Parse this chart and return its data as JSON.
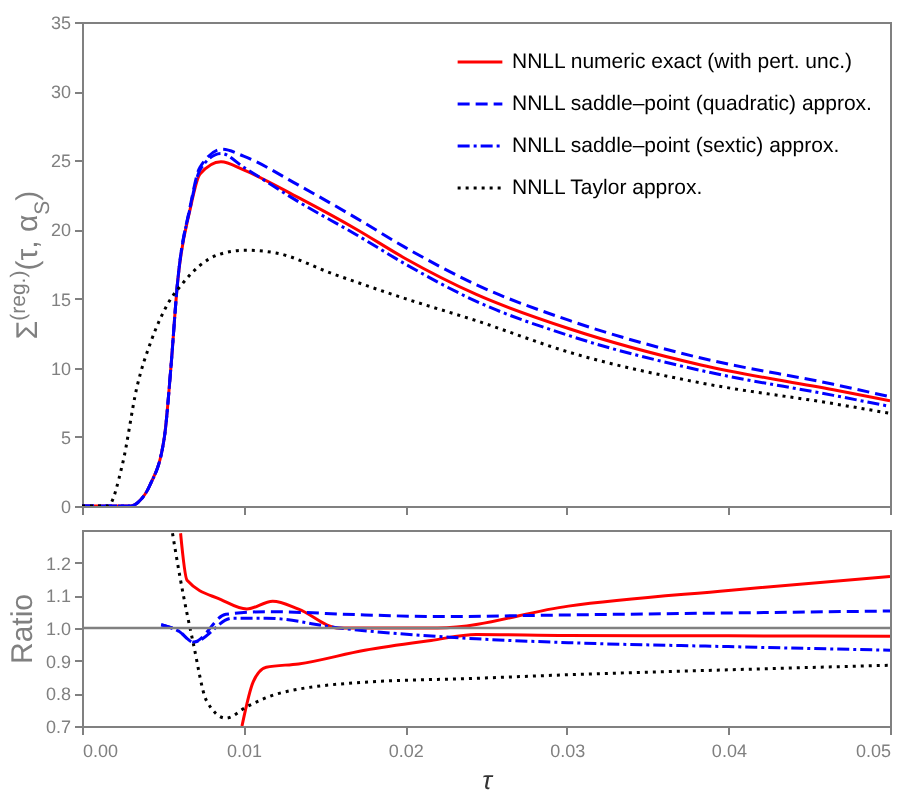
{
  "chart_data": [
    {
      "type": "line",
      "ylabel": "Σ$^{(reg.)}$(τ, α$_{S}$)",
      "xlim": [
        0,
        0.05
      ],
      "xticks": [
        0,
        0.01,
        0.02,
        0.03,
        0.04,
        0.05
      ],
      "ylim": [
        0,
        35
      ],
      "yticks": [
        0,
        5,
        10,
        15,
        20,
        25,
        30,
        35
      ],
      "tick_labels": "y",
      "legend": "top right",
      "grid": false,
      "series": [
        {
          "name": "NNLL numeric exact (with pert. unc.)",
          "color": "#ff0000",
          "line_style": "solid",
          "x": [
            0,
            0.003,
            0.0035,
            0.0042,
            0.0051,
            0.0055,
            0.0059,
            0.0067,
            0.0073,
            0.0086,
            0.01,
            0.0134,
            0.017,
            0.02,
            0.0244,
            0.0302,
            0.0383,
            0.0465,
            0.05
          ],
          "values": [
            0,
            0,
            0.3,
            1.5,
            5,
            10,
            16,
            21.5,
            24,
            24.9,
            24.3,
            22.3,
            20.0,
            17.9,
            15.3,
            12.8,
            10.2,
            8.4,
            7.6
          ]
        },
        {
          "name": "NNLL saddle–point (quadratic) approx.",
          "color": "#0000ff",
          "line_style": "dashed",
          "x": [
            0,
            0.003,
            0.0035,
            0.0042,
            0.0051,
            0.0055,
            0.0059,
            0.0067,
            0.0073,
            0.0087,
            0.01,
            0.0134,
            0.017,
            0.02,
            0.0244,
            0.0302,
            0.0383,
            0.0465,
            0.05
          ],
          "values": [
            0,
            0,
            0.3,
            1.5,
            5,
            10,
            16,
            21.7,
            24.5,
            25.8,
            25.3,
            23.2,
            20.8,
            18.7,
            16.0,
            13.4,
            10.7,
            8.8,
            7.9
          ]
        },
        {
          "name": "NNLL saddle–point (sextic) approx.",
          "color": "#0000ff",
          "line_style": "dashdot",
          "x": [
            0,
            0.003,
            0.0035,
            0.0042,
            0.0051,
            0.0055,
            0.0059,
            0.0067,
            0.0073,
            0.0086,
            0.01,
            0.0134,
            0.017,
            0.02,
            0.0244,
            0.0302,
            0.0383,
            0.0465,
            0.05
          ],
          "values": [
            0,
            0,
            0.3,
            1.5,
            5,
            10,
            16,
            21.6,
            24.3,
            25.5,
            24.5,
            22.0,
            19.6,
            17.5,
            14.8,
            12.3,
            9.8,
            8.0,
            7.2
          ]
        },
        {
          "name": "NNLL Taylor approx.",
          "color": "#000000",
          "line_style": "dotted",
          "x": [
            0,
            0.0016,
            0.0025,
            0.0034,
            0.0043,
            0.0053,
            0.0063,
            0.0073,
            0.0085,
            0.0101,
            0.012,
            0.0155,
            0.02,
            0.0244,
            0.0302,
            0.0383,
            0.0465,
            0.05
          ],
          "values": [
            0,
            0,
            3,
            8.6,
            12,
            14.6,
            16.2,
            17.4,
            18.2,
            18.5,
            18.3,
            16.8,
            15.0,
            13.4,
            11.1,
            8.9,
            7.4,
            6.7
          ]
        }
      ]
    },
    {
      "type": "line",
      "xlabel": "τ",
      "ylabel": "Ratio",
      "xlim": [
        0,
        0.05
      ],
      "xticks": [
        {
          "value": 0,
          "label": "0.00"
        },
        {
          "value": 0.01,
          "label": "0.01"
        },
        {
          "value": 0.02,
          "label": "0.02"
        },
        {
          "value": 0.03,
          "label": "0.03"
        },
        {
          "value": 0.04,
          "label": "0.04"
        },
        {
          "value": 0.05,
          "label": "0.05"
        }
      ],
      "ylim": [
        0.7,
        1.3
      ],
      "yticks": [
        0.7,
        0.8,
        0.9,
        {
          "value": 1.0,
          "label": "1.0"
        },
        1.1,
        1.2
      ],
      "grid": false,
      "ref_lines": [
        {
          "axis": "y",
          "value": 1.0,
          "color": "#808080"
        }
      ],
      "series": [
        {
          "color": "#ff0000",
          "line_style": "solid",
          "x": [
            0.0061,
            0.0065,
            0.0086,
            0.0102,
            0.0118,
            0.0134,
            0.0159,
            0.022,
            0.0301,
            0.04,
            0.05
          ],
          "values": [
            1.29,
            1.146,
            1.087,
            1.058,
            1.082,
            1.058,
            1.0,
            1.0,
            1.067,
            1.115,
            1.158
          ]
        },
        {
          "color": "#ff0000",
          "line_style": "solid",
          "x": [
            0.0099,
            0.0106,
            0.0114,
            0.0134,
            0.0175,
            0.0216,
            0.0244,
            0.03,
            0.04,
            0.05
          ],
          "values": [
            0.7,
            0.836,
            0.88,
            0.89,
            0.932,
            0.962,
            0.98,
            0.977,
            0.976,
            0.975
          ]
        },
        {
          "color": "#0000ff",
          "line_style": "dashed",
          "x": [
            0.0049,
            0.006,
            0.0069,
            0.0089,
            0.0114,
            0.0175,
            0.022,
            0.03,
            0.04,
            0.05
          ],
          "values": [
            1.01,
            0.99,
            0.957,
            1.042,
            1.05,
            1.04,
            1.035,
            1.04,
            1.046,
            1.052
          ]
        },
        {
          "color": "#0000ff",
          "line_style": "dashdot",
          "x": [
            0.0049,
            0.006,
            0.0069,
            0.0093,
            0.0114,
            0.0159,
            0.0244,
            0.0301,
            0.04,
            0.05
          ],
          "values": [
            1.01,
            0.99,
            0.957,
            1.03,
            1.03,
            1.0,
            0.967,
            0.955,
            0.943,
            0.932
          ]
        },
        {
          "color": "#000000",
          "line_style": "dotted",
          "x": [
            0.0056,
            0.0061,
            0.0069,
            0.0077,
            0.0089,
            0.0102,
            0.0122,
            0.0175,
            0.0244,
            0.0301,
            0.04,
            0.05
          ],
          "values": [
            1.29,
            1.146,
            0.95,
            0.778,
            0.724,
            0.759,
            0.8,
            0.834,
            0.846,
            0.857,
            0.872,
            0.886
          ]
        }
      ]
    }
  ]
}
